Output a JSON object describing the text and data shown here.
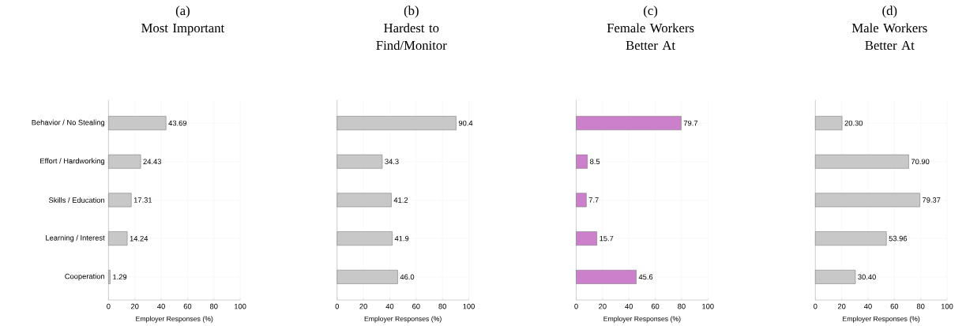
{
  "chart_data": [
    {
      "type": "bar",
      "orientation": "horizontal",
      "title": "(a)",
      "subtitle": "Most Important",
      "categories": [
        "Behavior / No Stealing",
        "Effort / Hardworking",
        "Skills / Education",
        "Learning / Interest",
        "Cooperation"
      ],
      "values": [
        43.69,
        24.43,
        17.31,
        14.24,
        1.29
      ],
      "value_labels": [
        "43.69",
        "24.43",
        "17.31",
        "14.24",
        "1.29"
      ],
      "color": "#c8c8c8",
      "xlabel": "Employer Responses (%)",
      "xlim": [
        0,
        100
      ],
      "xticks": [
        0,
        20,
        40,
        60,
        80,
        100
      ],
      "grid": true
    },
    {
      "type": "bar",
      "orientation": "horizontal",
      "title": "(b)",
      "subtitle": "Hardest to Find/Monitor",
      "categories": [
        null,
        null,
        null,
        null,
        null
      ],
      "values": [
        90.4,
        34.3,
        41.2,
        41.9,
        46.0
      ],
      "value_labels": [
        "90.4",
        "34.3",
        "41.2",
        "41.9",
        "46.0"
      ],
      "color": "#c8c8c8",
      "xlabel": "Employer Responses (%)",
      "xlim": [
        0,
        100
      ],
      "xticks": [
        0,
        20,
        40,
        60,
        80,
        100
      ],
      "grid": true,
      "tick_labels": "x"
    },
    {
      "type": "bar",
      "orientation": "horizontal",
      "title": "(c)",
      "subtitle": "Female Workers Better At",
      "categories": [
        null,
        null,
        null,
        null,
        null
      ],
      "values": [
        79.7,
        8.5,
        7.7,
        15.7,
        45.6
      ],
      "value_labels": [
        "79.7",
        "8.5",
        "7.7",
        "15.7",
        "45.6"
      ],
      "color": "#cc80cc",
      "xlabel": "Employer Responses (%)",
      "xlim": [
        0,
        100
      ],
      "xticks": [
        0,
        20,
        40,
        60,
        80,
        100
      ],
      "grid": true,
      "tick_labels": "x"
    },
    {
      "type": "bar",
      "orientation": "horizontal",
      "title": "(d)",
      "subtitle": "Male Workers Better At",
      "categories": [
        null,
        null,
        null,
        null,
        null
      ],
      "values": [
        20.3,
        70.9,
        79.37,
        53.96,
        30.4
      ],
      "value_labels": [
        "20.30",
        "70.90",
        "79.37",
        "53.96",
        "30.40"
      ],
      "color": "#c8c8c8",
      "xlabel": "Employer Responses (%)",
      "xlim": [
        0,
        100
      ],
      "xticks": [
        0,
        20,
        40,
        60,
        80,
        100
      ],
      "grid": true,
      "tick_labels": "x"
    }
  ]
}
